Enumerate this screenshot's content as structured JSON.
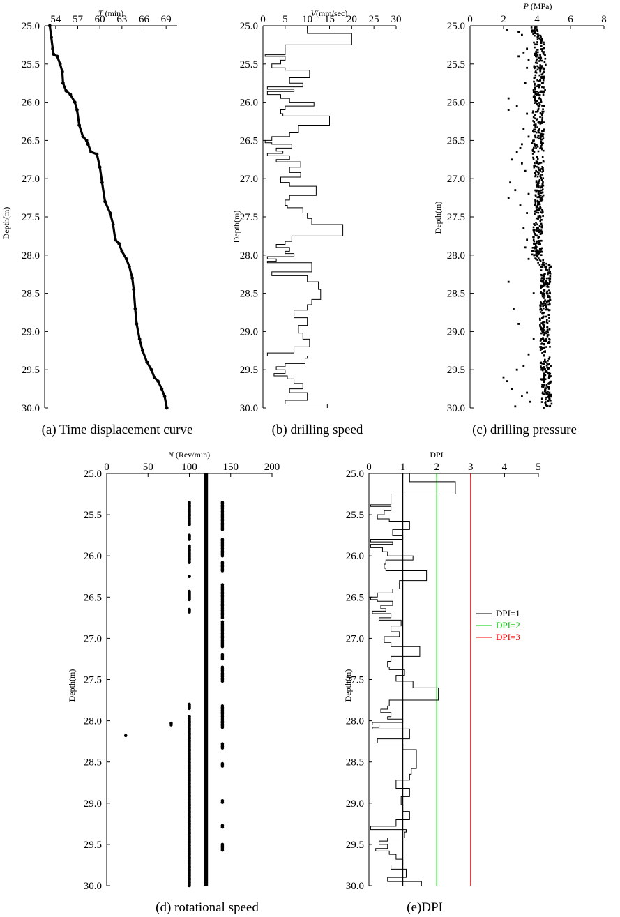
{
  "colors": {
    "ink": "#000000",
    "dpi2": "#00cc00",
    "dpi3": "#ff0000"
  },
  "chart_data": [
    {
      "id": "a",
      "type": "scatter",
      "title_italic": "T",
      "title_rest": " (min)",
      "ylabel": "Depth(m)",
      "caption": "(a) Time displacement curve",
      "xlim": [
        52.5,
        70.5
      ],
      "ylim": [
        25.0,
        30.0
      ],
      "xticks": [
        "54",
        "57",
        "60",
        "63",
        "66",
        "69"
      ],
      "xtick_values": [
        54,
        57,
        60,
        63,
        66,
        69
      ],
      "yticks": [
        "25.0",
        "25.5",
        "26.0",
        "26.5",
        "27.0",
        "27.5",
        "28.0",
        "28.5",
        "29.0",
        "29.5",
        "30.0"
      ],
      "ytick_values": [
        25.0,
        25.5,
        26.0,
        26.5,
        27.0,
        27.5,
        28.0,
        28.5,
        29.0,
        29.5,
        30.0
      ],
      "curve": [
        [
          53.2,
          25.0
        ],
        [
          53.4,
          25.15
        ],
        [
          53.6,
          25.3
        ],
        [
          53.7,
          25.37
        ],
        [
          54.2,
          25.4
        ],
        [
          54.6,
          25.5
        ],
        [
          54.9,
          25.6
        ],
        [
          55.0,
          25.75
        ],
        [
          55.4,
          25.85
        ],
        [
          56.0,
          25.9
        ],
        [
          56.6,
          26.0
        ],
        [
          56.9,
          26.1
        ],
        [
          57.2,
          26.3
        ],
        [
          57.7,
          26.45
        ],
        [
          58.2,
          26.5
        ],
        [
          58.4,
          26.55
        ],
        [
          58.8,
          26.65
        ],
        [
          59.6,
          26.68
        ],
        [
          60.0,
          26.85
        ],
        [
          60.3,
          27.05
        ],
        [
          60.7,
          27.3
        ],
        [
          61.4,
          27.45
        ],
        [
          61.8,
          27.6
        ],
        [
          62.1,
          27.8
        ],
        [
          62.6,
          27.85
        ],
        [
          63.0,
          27.95
        ],
        [
          63.6,
          28.05
        ],
        [
          64.0,
          28.15
        ],
        [
          64.4,
          28.3
        ],
        [
          64.6,
          28.45
        ],
        [
          64.8,
          28.7
        ],
        [
          65.0,
          28.9
        ],
        [
          65.4,
          29.1
        ],
        [
          65.8,
          29.25
        ],
        [
          66.4,
          29.4
        ],
        [
          67.0,
          29.5
        ],
        [
          67.4,
          29.6
        ],
        [
          67.9,
          29.65
        ],
        [
          68.4,
          29.75
        ],
        [
          68.8,
          29.85
        ],
        [
          69.1,
          30.0
        ]
      ]
    },
    {
      "id": "b",
      "type": "line",
      "title_italic": "V",
      "title_rest": "(mm/sec)",
      "ylabel": "Depth(m)",
      "caption": "(b) drilling speed",
      "xlim": [
        0,
        30
      ],
      "ylim": [
        25.0,
        30.0
      ],
      "xticks": [
        "0",
        "5",
        "10",
        "15",
        "20",
        "25",
        "30"
      ],
      "xtick_values": [
        0,
        5,
        10,
        15,
        20,
        25,
        30
      ],
      "yticks": [
        "25.0",
        "25.5",
        "26.0",
        "26.5",
        "27.0",
        "27.5",
        "28.0",
        "28.5",
        "29.0",
        "29.5",
        "30.0"
      ],
      "ytick_values": [
        25.0,
        25.5,
        26.0,
        26.5,
        27.0,
        27.5,
        28.0,
        28.5,
        29.0,
        29.5,
        30.0
      ],
      "steps": [
        [
          25.0,
          10
        ],
        [
          25.1,
          20
        ],
        [
          25.25,
          5
        ],
        [
          25.38,
          0.5
        ],
        [
          25.4,
          5
        ],
        [
          25.45,
          4
        ],
        [
          25.5,
          2
        ],
        [
          25.55,
          5
        ],
        [
          25.58,
          10.5
        ],
        [
          25.68,
          6
        ],
        [
          25.75,
          9
        ],
        [
          25.8,
          1
        ],
        [
          25.83,
          7
        ],
        [
          25.86,
          1
        ],
        [
          25.9,
          4
        ],
        [
          25.95,
          6
        ],
        [
          26.0,
          11.5
        ],
        [
          26.05,
          5
        ],
        [
          26.1,
          4
        ],
        [
          26.15,
          4.5
        ],
        [
          26.18,
          15
        ],
        [
          26.3,
          8
        ],
        [
          26.4,
          6
        ],
        [
          26.45,
          2
        ],
        [
          26.5,
          0.5
        ],
        [
          26.53,
          2
        ],
        [
          26.55,
          6.5
        ],
        [
          26.6,
          3
        ],
        [
          26.64,
          4.5
        ],
        [
          26.67,
          1
        ],
        [
          26.7,
          6
        ],
        [
          26.75,
          3
        ],
        [
          26.78,
          8.5
        ],
        [
          26.85,
          6
        ],
        [
          26.92,
          8.5
        ],
        [
          26.98,
          4
        ],
        [
          27.05,
          6
        ],
        [
          27.1,
          12
        ],
        [
          27.22,
          6
        ],
        [
          27.28,
          5
        ],
        [
          27.35,
          5.5
        ],
        [
          27.38,
          9
        ],
        [
          27.45,
          10
        ],
        [
          27.52,
          11
        ],
        [
          27.6,
          18
        ],
        [
          27.75,
          6.5
        ],
        [
          27.82,
          5
        ],
        [
          27.86,
          3
        ],
        [
          27.9,
          6
        ],
        [
          27.95,
          5
        ],
        [
          27.98,
          7
        ],
        [
          28.02,
          1
        ],
        [
          28.05,
          3
        ],
        [
          28.08,
          1
        ],
        [
          28.1,
          11
        ],
        [
          28.22,
          2
        ],
        [
          28.27,
          10
        ],
        [
          28.35,
          12.5
        ],
        [
          28.45,
          13
        ],
        [
          28.58,
          11
        ],
        [
          28.65,
          10
        ],
        [
          28.72,
          7
        ],
        [
          28.82,
          10
        ],
        [
          28.92,
          8
        ],
        [
          29.02,
          9
        ],
        [
          29.1,
          10.5
        ],
        [
          29.2,
          7
        ],
        [
          29.28,
          1
        ],
        [
          29.32,
          10
        ],
        [
          29.35,
          9.5
        ],
        [
          29.42,
          5
        ],
        [
          29.46,
          3
        ],
        [
          29.5,
          5
        ],
        [
          29.55,
          2.5
        ],
        [
          29.58,
          5.5
        ],
        [
          29.62,
          7
        ],
        [
          29.68,
          9
        ],
        [
          29.75,
          6
        ],
        [
          29.8,
          10
        ],
        [
          29.9,
          5
        ],
        [
          29.95,
          14.5
        ],
        [
          30.0,
          14.5
        ]
      ]
    },
    {
      "id": "c",
      "type": "scatter",
      "title_italic": "P",
      "title_rest": " (MPa)",
      "ylabel": "Depth(m)",
      "caption": "(c) drilling pressure",
      "xlim": [
        0,
        8
      ],
      "ylim": [
        25.0,
        30.0
      ],
      "xticks": [
        "0",
        "2",
        "4",
        "6",
        "8"
      ],
      "xtick_values": [
        0,
        2,
        4,
        6,
        8
      ],
      "yticks": [
        "25.0",
        "25.5",
        "26.0",
        "26.5",
        "27.0",
        "27.5",
        "28.0",
        "28.5",
        "29.0",
        "29.5",
        "30.0"
      ],
      "ytick_values": [
        25.0,
        25.5,
        26.0,
        26.5,
        27.0,
        27.5,
        28.0,
        28.5,
        29.0,
        29.5,
        30.0
      ],
      "main_band": [
        [
          25.0,
          3.9,
          0.25
        ],
        [
          25.35,
          4.2,
          0.35
        ],
        [
          26.5,
          4.05,
          0.35
        ],
        [
          27.2,
          4.15,
          0.25
        ],
        [
          28.0,
          4.0,
          0.3
        ],
        [
          28.15,
          4.55,
          0.3
        ],
        [
          29.0,
          4.45,
          0.3
        ],
        [
          30.0,
          4.6,
          0.3
        ]
      ],
      "outliers": [
        [
          25.05,
          2.2
        ],
        [
          25.08,
          2.9
        ],
        [
          25.12,
          3.1
        ],
        [
          25.3,
          3.4
        ],
        [
          25.35,
          3.2
        ],
        [
          25.4,
          2.9
        ],
        [
          25.45,
          3.5
        ],
        [
          25.55,
          3.4
        ],
        [
          25.75,
          3.3
        ],
        [
          25.95,
          2.3
        ],
        [
          26.05,
          2.8
        ],
        [
          26.1,
          2.3
        ],
        [
          26.15,
          3.4
        ],
        [
          26.35,
          3.2
        ],
        [
          26.45,
          3.5
        ],
        [
          26.55,
          3.1
        ],
        [
          26.6,
          3.0
        ],
        [
          26.65,
          2.8
        ],
        [
          26.75,
          2.5
        ],
        [
          26.8,
          3.1
        ],
        [
          26.9,
          3.3
        ],
        [
          27.05,
          2.4
        ],
        [
          27.15,
          2.7
        ],
        [
          27.2,
          3.5
        ],
        [
          27.25,
          2.3
        ],
        [
          27.35,
          3.0
        ],
        [
          27.45,
          3.4
        ],
        [
          27.65,
          3.2
        ],
        [
          27.8,
          3.4
        ],
        [
          27.9,
          3.3
        ],
        [
          28.05,
          3.5
        ],
        [
          28.35,
          2.3
        ],
        [
          28.5,
          3.8
        ],
        [
          28.7,
          2.6
        ],
        [
          28.9,
          2.9
        ],
        [
          29.1,
          3.8
        ],
        [
          29.3,
          3.5
        ],
        [
          29.45,
          3.2
        ],
        [
          29.5,
          2.8
        ],
        [
          29.6,
          2.0
        ],
        [
          29.65,
          2.2
        ],
        [
          29.75,
          2.5
        ],
        [
          29.8,
          3.4
        ],
        [
          29.85,
          3.1
        ],
        [
          29.92,
          3.6
        ],
        [
          29.98,
          2.7
        ]
      ]
    },
    {
      "id": "d",
      "type": "scatter",
      "title_italic": "N",
      "title_rest": " (Rev/min)",
      "ylabel": "Depth(m)",
      "caption": "(d) rotational speed",
      "xlim": [
        0,
        200
      ],
      "ylim": [
        25.0,
        30.0
      ],
      "xticks": [
        "0",
        "50",
        "100",
        "150",
        "200"
      ],
      "xtick_values": [
        0,
        50,
        100,
        150,
        200
      ],
      "yticks": [
        "25.0",
        "25.5",
        "26.0",
        "26.5",
        "27.0",
        "27.5",
        "28.0",
        "28.5",
        "29.0",
        "29.5",
        "30.0"
      ],
      "ytick_values": [
        25.0,
        25.5,
        26.0,
        26.5,
        27.0,
        27.5,
        28.0,
        28.5,
        29.0,
        29.5,
        30.0
      ],
      "dense_column": {
        "x": 120,
        "from": 25.0,
        "to": 30.0
      },
      "column_100": [
        [
          25.35,
          25.62
        ],
        [
          25.75,
          25.8
        ],
        [
          25.88,
          26.08
        ],
        [
          26.25,
          26.25
        ],
        [
          26.43,
          26.53
        ],
        [
          26.65,
          26.68
        ],
        [
          27.8,
          27.85
        ],
        [
          27.95,
          30.0
        ]
      ],
      "column_140": [
        [
          25.35,
          25.68
        ],
        [
          25.8,
          26.0
        ],
        [
          26.08,
          26.18
        ],
        [
          26.35,
          26.75
        ],
        [
          26.8,
          27.1
        ],
        [
          27.2,
          27.25
        ],
        [
          27.35,
          27.52
        ],
        [
          27.82,
          28.08
        ],
        [
          28.28,
          28.33
        ],
        [
          28.52,
          28.55
        ],
        [
          28.97,
          28.99
        ],
        [
          29.27,
          29.29
        ],
        [
          29.5,
          29.57
        ]
      ],
      "extra_points": [
        [
          28.03,
          78
        ],
        [
          28.05,
          78
        ],
        [
          28.18,
          23
        ]
      ]
    },
    {
      "id": "e",
      "type": "line",
      "title": "DPI",
      "ylabel": "Depth(m)",
      "caption": "(e)DPI",
      "xlim": [
        0,
        5
      ],
      "ylim": [
        25.0,
        30.0
      ],
      "xticks": [
        "0",
        "1",
        "2",
        "3",
        "4",
        "5"
      ],
      "xtick_values": [
        0,
        1,
        2,
        3,
        4,
        5
      ],
      "yticks": [
        "25.0",
        "25.5",
        "26.0",
        "26.5",
        "27.0",
        "27.5",
        "28.0",
        "28.5",
        "29.0",
        "29.5",
        "30.0"
      ],
      "ytick_values": [
        25.0,
        25.5,
        26.0,
        26.5,
        27.0,
        27.5,
        28.0,
        28.5,
        29.0,
        29.5,
        30.0
      ],
      "legend": [
        {
          "label": "DPI=1",
          "value": 1,
          "color": "#000000"
        },
        {
          "label": "DPI=2",
          "value": 2,
          "color": "#00cc00"
        },
        {
          "label": "DPI=3",
          "value": 3,
          "color": "#ff0000"
        }
      ],
      "steps": [
        [
          25.0,
          1.2
        ],
        [
          25.1,
          2.55
        ],
        [
          25.25,
          0.65
        ],
        [
          25.38,
          0.05
        ],
        [
          25.4,
          0.65
        ],
        [
          25.45,
          0.45
        ],
        [
          25.5,
          0.25
        ],
        [
          25.55,
          0.6
        ],
        [
          25.58,
          1.2
        ],
        [
          25.68,
          0.7
        ],
        [
          25.75,
          1.0
        ],
        [
          25.8,
          0.05
        ],
        [
          25.83,
          0.7
        ],
        [
          25.86,
          0.05
        ],
        [
          25.9,
          0.4
        ],
        [
          25.95,
          0.55
        ],
        [
          26.0,
          1.3
        ],
        [
          26.05,
          0.5
        ],
        [
          26.1,
          0.45
        ],
        [
          26.15,
          0.5
        ],
        [
          26.18,
          1.7
        ],
        [
          26.3,
          0.9
        ],
        [
          26.4,
          0.7
        ],
        [
          26.45,
          0.25
        ],
        [
          26.5,
          0.05
        ],
        [
          26.53,
          0.25
        ],
        [
          26.55,
          0.7
        ],
        [
          26.6,
          0.35
        ],
        [
          26.64,
          0.5
        ],
        [
          26.67,
          0.1
        ],
        [
          26.7,
          0.65
        ],
        [
          26.75,
          0.3
        ],
        [
          26.78,
          0.95
        ],
        [
          26.85,
          0.65
        ],
        [
          26.92,
          0.9
        ],
        [
          26.98,
          0.45
        ],
        [
          27.05,
          0.65
        ],
        [
          27.1,
          1.5
        ],
        [
          27.22,
          0.65
        ],
        [
          27.28,
          0.55
        ],
        [
          27.35,
          0.6
        ],
        [
          27.38,
          1.05
        ],
        [
          27.45,
          0.8
        ],
        [
          27.52,
          1.3
        ],
        [
          27.6,
          2.05
        ],
        [
          27.75,
          0.6
        ],
        [
          27.82,
          0.55
        ],
        [
          27.86,
          0.35
        ],
        [
          27.9,
          0.65
        ],
        [
          27.95,
          0.55
        ],
        [
          27.98,
          1.0
        ],
        [
          28.02,
          0.1
        ],
        [
          28.05,
          0.3
        ],
        [
          28.08,
          0.1
        ],
        [
          28.1,
          1.2
        ],
        [
          28.22,
          0.25
        ],
        [
          28.27,
          1.0
        ],
        [
          28.35,
          1.4
        ],
        [
          28.45,
          1.4
        ],
        [
          28.58,
          1.25
        ],
        [
          28.65,
          1.2
        ],
        [
          28.72,
          0.8
        ],
        [
          28.82,
          1.2
        ],
        [
          28.92,
          0.95
        ],
        [
          29.02,
          1.0
        ],
        [
          29.1,
          1.2
        ],
        [
          29.2,
          0.8
        ],
        [
          29.28,
          0.05
        ],
        [
          29.32,
          1.1
        ],
        [
          29.35,
          1.05
        ],
        [
          29.42,
          0.55
        ],
        [
          29.46,
          0.3
        ],
        [
          29.5,
          0.55
        ],
        [
          29.55,
          0.2
        ],
        [
          29.58,
          0.6
        ],
        [
          29.62,
          0.8
        ],
        [
          29.68,
          1.0
        ],
        [
          29.75,
          0.65
        ],
        [
          29.8,
          1.1
        ],
        [
          29.9,
          0.55
        ],
        [
          29.95,
          1.55
        ],
        [
          30.0,
          1.55
        ]
      ]
    }
  ]
}
